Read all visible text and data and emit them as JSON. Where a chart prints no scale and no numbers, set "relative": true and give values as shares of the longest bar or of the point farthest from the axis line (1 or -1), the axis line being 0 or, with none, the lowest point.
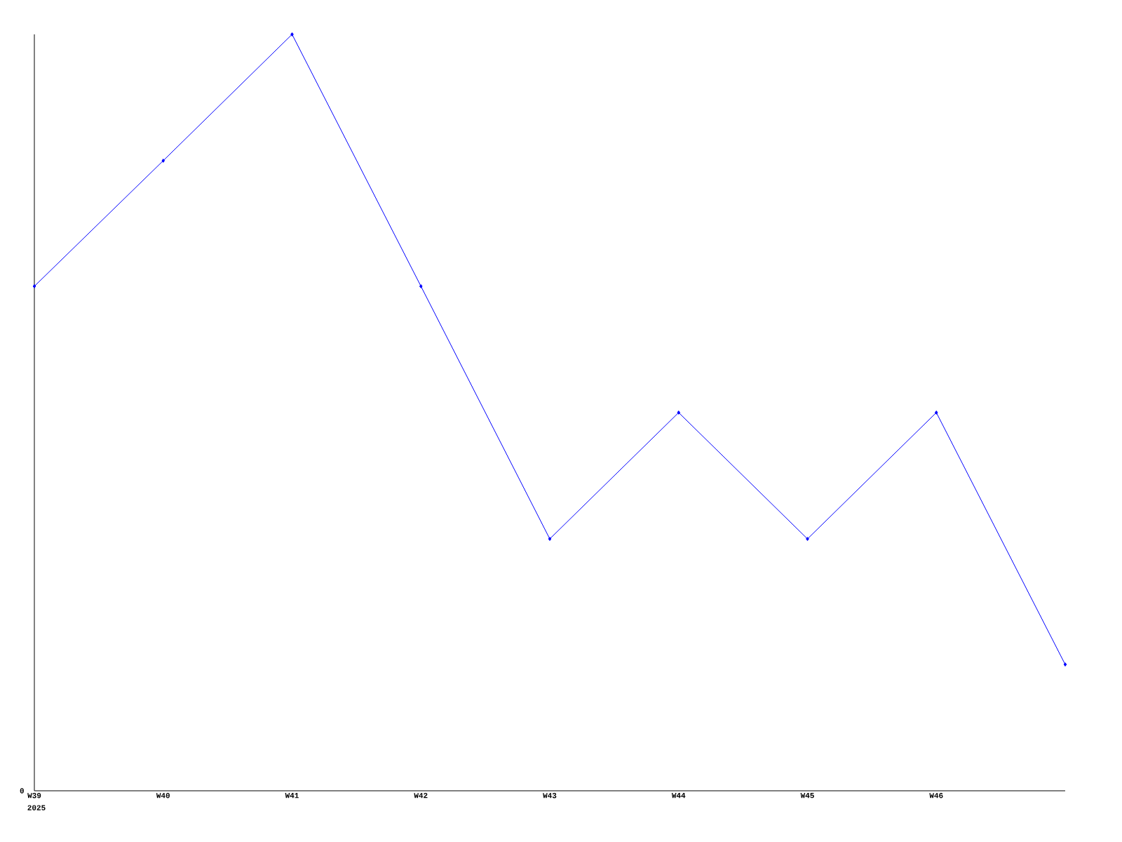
{
  "chart_data": {
    "type": "line",
    "relative": true,
    "categories": [
      "W39",
      "W40",
      "W41",
      "W42",
      "W43",
      "W44",
      "W45",
      "W46",
      null
    ],
    "series": [
      {
        "color": "#0000ff",
        "values": [
          0.667,
          0.833,
          1,
          0.667,
          0.333,
          0.5,
          0.333,
          0.5,
          0.167
        ]
      }
    ],
    "annotations": [
      "0",
      "2025"
    ],
    "marker": "diamond",
    "line_style": "solid"
  }
}
